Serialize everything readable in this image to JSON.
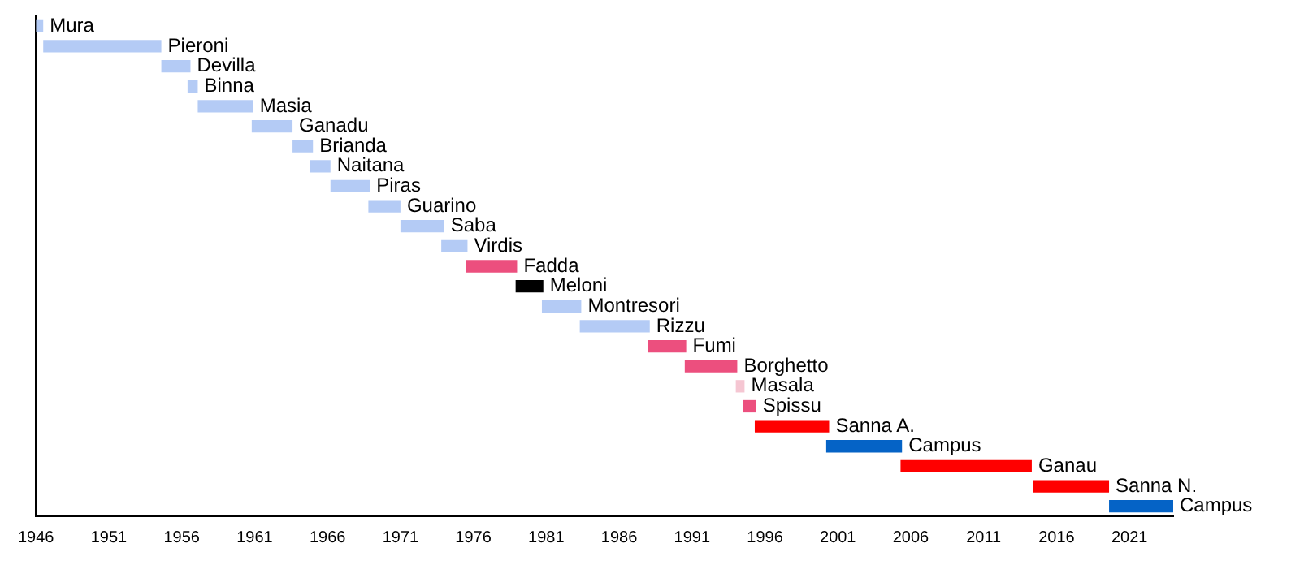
{
  "chart_data": {
    "type": "bar",
    "orientation": "horizontal",
    "categories": [
      "Mura",
      "Pieroni",
      "Devilla",
      "Binna",
      "Masia",
      "Ganadu",
      "Brianda",
      "Naitana",
      "Piras",
      "Guarino",
      "Saba",
      "Virdis",
      "Fadda",
      "Meloni",
      "Montresori",
      "Rizzu",
      "Fumi",
      "Borghetto",
      "Masala",
      "Spissu",
      "Sanna A.",
      "Campus",
      "Ganau",
      "Sanna N.",
      "Campus"
    ],
    "base": [
      1946,
      1946.5,
      1954.6,
      1956.4,
      1957.1,
      1960.8,
      1963.6,
      1964.8,
      1966.2,
      1968.8,
      1971,
      1973.8,
      1975.5,
      1978.9,
      1980.7,
      1983.3,
      1988,
      1990.5,
      1994,
      1994.5,
      1995.3,
      2000.2,
      2005.3,
      2014.4,
      2019.6
    ],
    "values": [
      0.5,
      8.1,
      2,
      0.7,
      3.8,
      2.8,
      1.4,
      1.4,
      2.7,
      2.2,
      3,
      1.8,
      3.5,
      1.9,
      2.7,
      4.8,
      2.6,
      3.6,
      0.6,
      0.9,
      5.1,
      5.2,
      9,
      5.2,
      4.4
    ],
    "colors": [
      "#b4cbf5",
      "#b4cbf5",
      "#b4cbf5",
      "#b4cbf5",
      "#b4cbf5",
      "#b4cbf5",
      "#b4cbf5",
      "#b4cbf5",
      "#b4cbf5",
      "#b4cbf5",
      "#b4cbf5",
      "#b4cbf5",
      "#ec4f7e",
      "#000000",
      "#b4cbf5",
      "#b4cbf5",
      "#ec4f7e",
      "#ec4f7e",
      "#f5c6d2",
      "#ec4f7e",
      "#ff0000",
      "#0563c6",
      "#ff0000",
      "#ff0000",
      "#0563c6"
    ],
    "xlim": [
      1946,
      2024
    ],
    "xticks": [
      1946,
      1951,
      1956,
      1961,
      1966,
      1971,
      1976,
      1981,
      1986,
      1991,
      1996,
      2001,
      2006,
      2011,
      2016,
      2021
    ],
    "tick_labels": "x",
    "grid": false,
    "legend": false
  }
}
